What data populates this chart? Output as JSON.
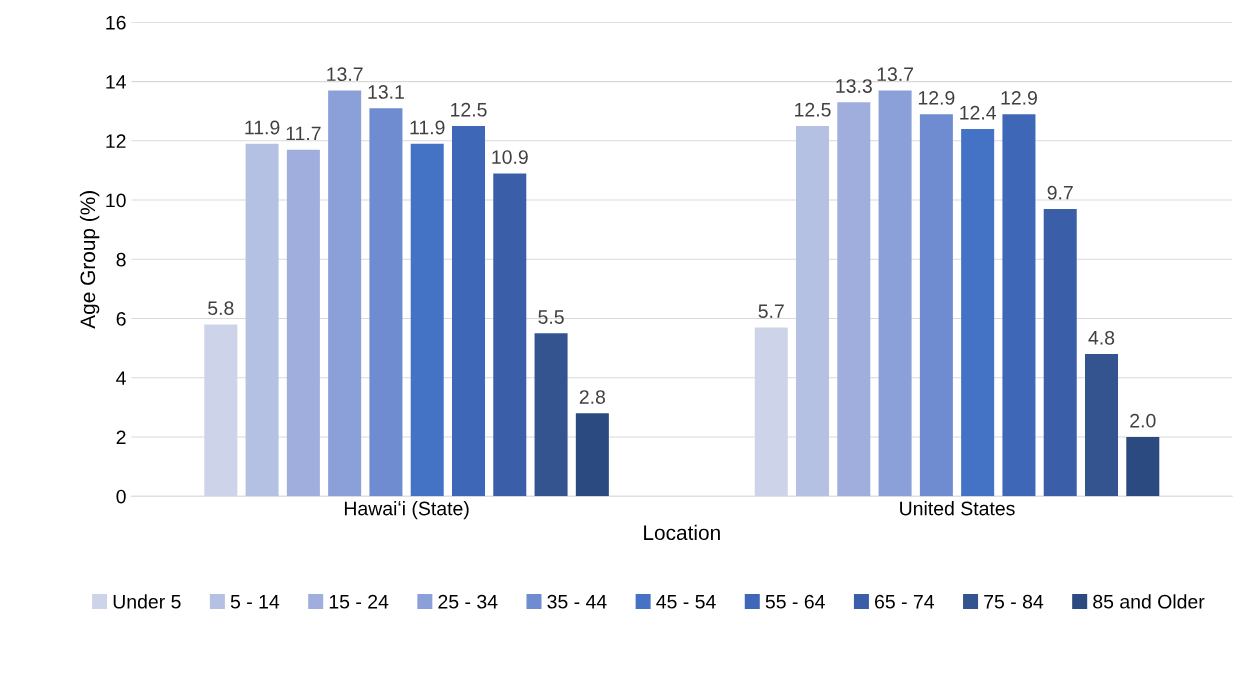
{
  "chart_data": {
    "type": "bar",
    "xlabel": "Location",
    "ylabel": "Age Group (%)",
    "categories": [
      "Hawaiʻi (State)",
      "United States"
    ],
    "series": [
      {
        "name": "Under 5",
        "color": "#cdd3e8",
        "values": [
          5.8,
          5.7
        ]
      },
      {
        "name": "5 - 14",
        "color": "#b4c1e3",
        "values": [
          11.9,
          12.5
        ]
      },
      {
        "name": "15 - 24",
        "color": "#9faedd",
        "values": [
          11.7,
          13.3
        ]
      },
      {
        "name": "25 - 34",
        "color": "#8ba0d8",
        "values": [
          13.7,
          13.7
        ]
      },
      {
        "name": "35 - 44",
        "color": "#6e8ccf",
        "values": [
          13.1,
          12.9
        ]
      },
      {
        "name": "45 - 54",
        "color": "#4472c4",
        "values": [
          11.9,
          12.4
        ]
      },
      {
        "name": "55 - 64",
        "color": "#3f67b8",
        "values": [
          12.5,
          12.9
        ]
      },
      {
        "name": "65 - 74",
        "color": "#3a5ea8",
        "values": [
          10.9,
          9.7
        ]
      },
      {
        "name": "75 - 84",
        "color": "#33548f",
        "values": [
          5.5,
          4.8
        ]
      },
      {
        "name": "85 and Older",
        "color": "#2b4a80",
        "values": [
          2.8,
          2.0
        ]
      }
    ],
    "value_labels": [
      [
        "5.8",
        "5.7"
      ],
      [
        "11.9",
        "12.5"
      ],
      [
        "11.7",
        "13.3"
      ],
      [
        "13.7",
        "13.7"
      ],
      [
        "13.1",
        "12.9"
      ],
      [
        "11.9",
        "12.4"
      ],
      [
        "12.5",
        "12.9"
      ],
      [
        "10.9",
        "9.7"
      ],
      [
        "5.5",
        "4.8"
      ],
      [
        "2.8",
        "2.0"
      ]
    ],
    "ylim": [
      0,
      16
    ],
    "yticks": [
      0,
      2,
      4,
      6,
      8,
      10,
      12,
      14,
      16
    ],
    "grid": "y",
    "legend": "bottom"
  }
}
